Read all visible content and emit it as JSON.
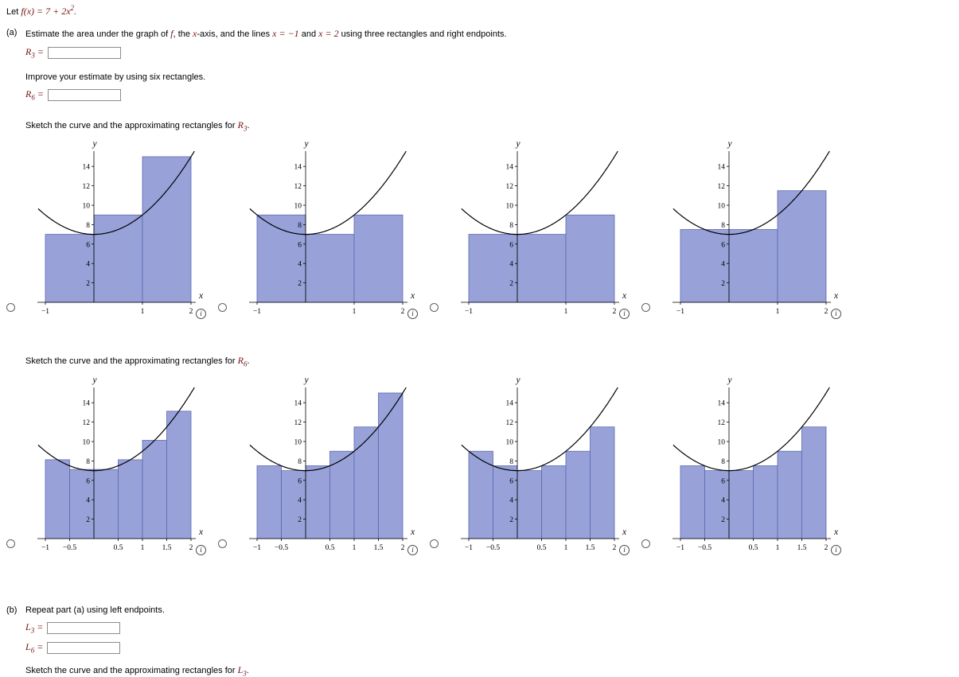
{
  "colors": {
    "rect_fill": "#98a2d8",
    "rect_stroke": "#5c68b0",
    "curve": "#000000",
    "math": "#771111"
  },
  "header": {
    "lead": "Let ",
    "math": "f(x) = 7 + 2x",
    "sup": "2",
    "end": "."
  },
  "part_a": {
    "label": "(a)",
    "s1": "Estimate the area under the graph of ",
    "m1": "f",
    "s2": ", the ",
    "m2": "x",
    "s3": "-axis, and the lines ",
    "m3": "x = −1",
    "s4": " and ",
    "m4": "x = 2",
    "s5": " using three rectangles and right endpoints."
  },
  "improve_text": "Improve your estimate by using six rectangles.",
  "answers": {
    "r3": {
      "sym": "R",
      "sub": "3",
      "eq": " = ",
      "value": ""
    },
    "r6": {
      "sym": "R",
      "sub": "6",
      "eq": " = ",
      "value": ""
    },
    "l3": {
      "sym": "L",
      "sub": "3",
      "eq": " = ",
      "value": ""
    },
    "l6": {
      "sym": "L",
      "sub": "6",
      "eq": " = ",
      "value": ""
    }
  },
  "sketch_r3": {
    "pre": "Sketch the curve and the approximating rectangles for ",
    "sym": "R",
    "sub": "3",
    "post": "."
  },
  "sketch_r6": {
    "pre": "Sketch the curve and the approximating rectangles for ",
    "sym": "R",
    "sub": "6",
    "post": "."
  },
  "part_b": {
    "label": "(b)",
    "text": "Repeat part (a) using left endpoints."
  },
  "sketch_l3": {
    "pre": "Sketch the curve and the approximating rectangles for ",
    "sym": "L",
    "sub": "3",
    "post": "."
  },
  "chart_data": {
    "type": "area",
    "description": "Riemann sum rectangle sketch options for f(x) = 7 + 2x^2 on [−1, 2]",
    "curve_const": 7,
    "curve_coef": 2,
    "xlabel": "x",
    "ylabel": "y",
    "xlim": [
      -1.35,
      2.2
    ],
    "ylim": [
      0,
      15.7
    ],
    "yticks": [
      2,
      4,
      6,
      8,
      10,
      12,
      14
    ],
    "rows": [
      {
        "name": "R3",
        "x_start": -1,
        "dx": 1,
        "xticks": [
          -1,
          1,
          2
        ],
        "xtick_labels": [
          "−1",
          "1",
          "2"
        ],
        "options": [
          {
            "label": "right-endpoints-R3",
            "heights": [
              7,
              9,
              15
            ]
          },
          {
            "label": "left-endpoints-L3",
            "heights": [
              9,
              7,
              9
            ]
          },
          {
            "label": "lower-sum",
            "heights": [
              7,
              7,
              9
            ]
          },
          {
            "label": "midpoints-M3",
            "heights": [
              7.5,
              7.5,
              11.5
            ]
          }
        ]
      },
      {
        "name": "R6",
        "x_start": -1,
        "dx": 0.5,
        "xticks": [
          -1,
          -0.5,
          0.5,
          1,
          1.5,
          2
        ],
        "xtick_labels": [
          "−1",
          "−0.5",
          "0.5",
          "1",
          "1.5",
          "2"
        ],
        "options": [
          {
            "label": "midpoints-M6",
            "heights": [
              8.125,
              7.125,
              7.125,
              8.125,
              10.125,
              13.125
            ]
          },
          {
            "label": "right-endpoints-R6",
            "heights": [
              7.5,
              7,
              7.5,
              9,
              11.5,
              15
            ]
          },
          {
            "label": "left-endpoints-L6",
            "heights": [
              9,
              7.5,
              7,
              7.5,
              9,
              11.5
            ]
          },
          {
            "label": "lower-sum",
            "heights": [
              7.5,
              7,
              7,
              7.5,
              9,
              11.5
            ]
          }
        ]
      }
    ]
  }
}
